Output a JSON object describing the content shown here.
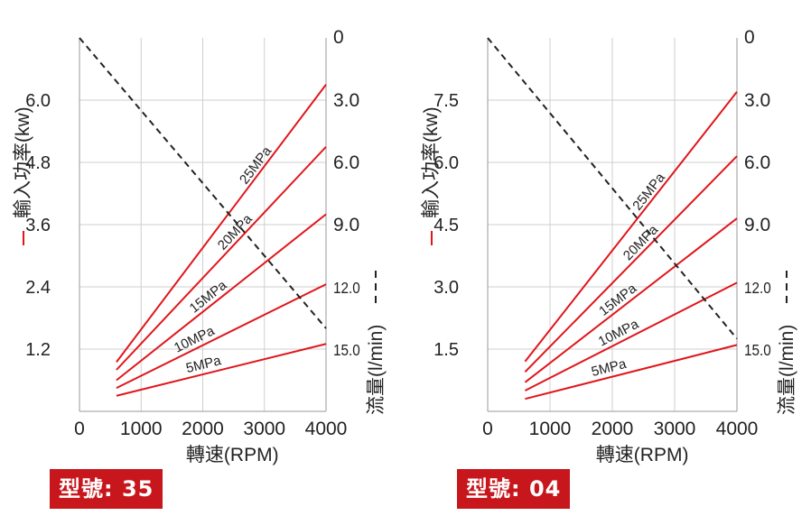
{
  "chart_data": [
    {
      "type": "line",
      "model_label": "型號: 35",
      "xlabel": "轉速(RPM)",
      "ylabel_left": "輸入功率(kw)",
      "ylabel_right": "流量(l/min)",
      "x_ticks": [
        0,
        1000,
        2000,
        3000,
        4000
      ],
      "xlim": [
        0,
        4000
      ],
      "ylim_left": [
        0,
        7.2
      ],
      "y_ticks_left": [
        1.2,
        2.4,
        3.6,
        4.8,
        6.0
      ],
      "ylim_right": [
        18.0,
        0
      ],
      "y_ticks_right": [
        0,
        3.0,
        6.0,
        9.0,
        12.0,
        15.0
      ],
      "grid": true,
      "power_series": [
        {
          "name": "25MPa",
          "x": [
            600,
            4000
          ],
          "y": [
            0.95,
            6.3
          ]
        },
        {
          "name": "20MPa",
          "x": [
            600,
            4000
          ],
          "y": [
            0.8,
            5.1
          ]
        },
        {
          "name": "15MPa",
          "x": [
            600,
            4000
          ],
          "y": [
            0.6,
            3.8
          ]
        },
        {
          "name": "10MPa",
          "x": [
            600,
            4000
          ],
          "y": [
            0.45,
            2.45
          ]
        },
        {
          "name": "5MPa",
          "x": [
            600,
            4000
          ],
          "y": [
            0.3,
            1.3
          ]
        }
      ],
      "flow_series": {
        "x": [
          0,
          4000
        ],
        "y": [
          0,
          14.0
        ]
      }
    },
    {
      "type": "line",
      "model_label": "型號: 04",
      "xlabel": "轉速(RPM)",
      "ylabel_left": "輸入功率(kw)",
      "ylabel_right": "流量(l/min)",
      "x_ticks": [
        0,
        1000,
        2000,
        3000,
        4000
      ],
      "xlim": [
        0,
        4000
      ],
      "ylim_left": [
        0,
        9.0
      ],
      "y_ticks_left": [
        1.5,
        3.0,
        4.5,
        6.0,
        7.5
      ],
      "ylim_right": [
        18.0,
        0
      ],
      "y_ticks_right": [
        0,
        3.0,
        6.0,
        9.0,
        12.0,
        15.0
      ],
      "grid": true,
      "power_series": [
        {
          "name": "25MPa",
          "x": [
            600,
            4000
          ],
          "y": [
            1.2,
            7.7
          ]
        },
        {
          "name": "20MPa",
          "x": [
            600,
            4000
          ],
          "y": [
            0.95,
            6.15
          ]
        },
        {
          "name": "15MPa",
          "x": [
            600,
            4000
          ],
          "y": [
            0.7,
            4.65
          ]
        },
        {
          "name": "10MPa",
          "x": [
            600,
            4000
          ],
          "y": [
            0.5,
            3.1
          ]
        },
        {
          "name": "5MPa",
          "x": [
            600,
            4000
          ],
          "y": [
            0.3,
            1.6
          ]
        }
      ],
      "flow_series": {
        "x": [
          0,
          4000
        ],
        "y": [
          0,
          14.5
        ]
      }
    }
  ]
}
